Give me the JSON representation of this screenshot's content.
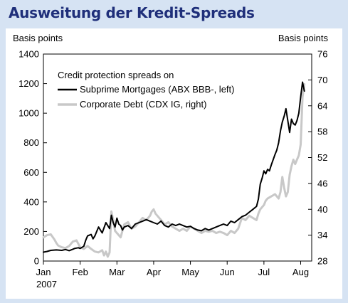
{
  "page": {
    "title": "Ausweitung der Kredit-Spreads",
    "background": "#d6e3f3",
    "title_color": "#1f2f7a"
  },
  "chart_data": {
    "type": "line",
    "ylabel_left": "Basis points",
    "ylabel_right": "Basis points",
    "ylim_left": [
      0,
      1400
    ],
    "ylim_right": [
      28,
      76
    ],
    "yticks_left": [
      0,
      200,
      400,
      600,
      800,
      1000,
      1200,
      1400
    ],
    "yticks_right": [
      28,
      34,
      40,
      46,
      52,
      58,
      64,
      70,
      76
    ],
    "xlim": [
      0,
      7.3
    ],
    "x_tick_positions": [
      0,
      1,
      2,
      3,
      4,
      5,
      6,
      7
    ],
    "x_tick_labels": [
      "Jan",
      "Feb",
      "Mar",
      "Apr",
      "May",
      "Jun",
      "Jul",
      "Aug"
    ],
    "x_year_label": "2007",
    "legend_title": "Credit protection spreads on",
    "legend_position": "top-left",
    "grid": false,
    "series": [
      {
        "name": "Subprime Mortgages (ABX BBB-, left)",
        "axis": "left",
        "color": "#000000",
        "x": [
          0,
          0.1,
          0.2,
          0.35,
          0.5,
          0.6,
          0.7,
          0.8,
          0.85,
          0.95,
          1.0,
          1.1,
          1.15,
          1.2,
          1.3,
          1.35,
          1.4,
          1.45,
          1.5,
          1.6,
          1.7,
          1.8,
          1.85,
          1.9,
          1.95,
          2.0,
          2.05,
          2.1,
          2.15,
          2.2,
          2.3,
          2.4,
          2.5,
          2.6,
          2.7,
          2.8,
          2.9,
          3.0,
          3.1,
          3.2,
          3.3,
          3.4,
          3.5,
          3.6,
          3.7,
          3.8,
          3.9,
          4.0,
          4.1,
          4.2,
          4.3,
          4.4,
          4.5,
          4.6,
          4.7,
          4.8,
          4.9,
          5.0,
          5.1,
          5.2,
          5.3,
          5.4,
          5.5,
          5.6,
          5.7,
          5.8,
          5.85,
          5.9,
          5.95,
          6.0,
          6.05,
          6.1,
          6.15,
          6.2,
          6.3,
          6.35,
          6.4,
          6.45,
          6.5,
          6.55,
          6.6,
          6.65,
          6.7,
          6.75,
          6.8,
          6.85,
          6.9,
          6.95,
          7.0,
          7.05,
          7.1
        ],
        "values": [
          60,
          65,
          72,
          75,
          72,
          78,
          70,
          80,
          85,
          90,
          85,
          100,
          140,
          170,
          180,
          150,
          170,
          200,
          230,
          190,
          260,
          220,
          310,
          260,
          230,
          290,
          250,
          240,
          210,
          230,
          240,
          220,
          250,
          260,
          270,
          280,
          270,
          260,
          250,
          270,
          240,
          230,
          250,
          240,
          250,
          240,
          230,
          235,
          220,
          210,
          205,
          220,
          210,
          220,
          230,
          240,
          250,
          240,
          270,
          260,
          280,
          300,
          310,
          330,
          350,
          370,
          420,
          520,
          560,
          610,
          590,
          620,
          610,
          650,
          720,
          750,
          800,
          880,
          940,
          980,
          1030,
          950,
          870,
          960,
          930,
          920,
          950,
          1000,
          1110,
          1210,
          1150
        ]
      },
      {
        "name": "Corporate Debt (CDX IG, right)",
        "axis": "right",
        "color": "#c8c8c8",
        "x": [
          0,
          0.1,
          0.2,
          0.3,
          0.35,
          0.4,
          0.5,
          0.6,
          0.7,
          0.8,
          0.9,
          1.0,
          1.1,
          1.2,
          1.3,
          1.4,
          1.5,
          1.6,
          1.65,
          1.7,
          1.75,
          1.8,
          1.85,
          1.9,
          1.95,
          2.0,
          2.05,
          2.1,
          2.2,
          2.3,
          2.4,
          2.5,
          2.6,
          2.7,
          2.8,
          2.9,
          2.95,
          3.0,
          3.05,
          3.1,
          3.2,
          3.3,
          3.4,
          3.5,
          3.6,
          3.7,
          3.8,
          3.9,
          4.0,
          4.1,
          4.2,
          4.3,
          4.4,
          4.5,
          4.6,
          4.7,
          4.8,
          4.9,
          5.0,
          5.1,
          5.2,
          5.3,
          5.4,
          5.5,
          5.6,
          5.7,
          5.8,
          5.85,
          5.9,
          5.95,
          6.0,
          6.05,
          6.1,
          6.2,
          6.3,
          6.4,
          6.45,
          6.5,
          6.55,
          6.6,
          6.65,
          6.7,
          6.75,
          6.8,
          6.85,
          6.9,
          6.95,
          7.0,
          7.05,
          7.1
        ],
        "values": [
          33.5,
          34.0,
          34.2,
          33.0,
          32.2,
          31.6,
          31.2,
          31.0,
          31.5,
          32.5,
          32.8,
          31.2,
          30.8,
          31.5,
          30.8,
          30.2,
          30.0,
          30.5,
          29.3,
          30.2,
          29.0,
          30.0,
          39.5,
          37.5,
          35.0,
          34.5,
          34.0,
          33.5,
          36.5,
          37.0,
          35.5,
          36.0,
          37.0,
          38.0,
          37.5,
          38.5,
          39.5,
          40.0,
          39.0,
          38.5,
          37.5,
          36.5,
          37.0,
          36.0,
          35.5,
          35.0,
          35.5,
          35.0,
          36.0,
          35.5,
          35.0,
          34.5,
          35.0,
          34.8,
          35.0,
          34.5,
          34.8,
          34.5,
          34.0,
          35.0,
          34.5,
          35.5,
          38.0,
          37.5,
          38.5,
          38.0,
          37.5,
          39.0,
          40.0,
          40.5,
          41.0,
          42.0,
          42.5,
          43.0,
          43.5,
          42.5,
          44.0,
          47.5,
          45.0,
          43.0,
          44.0,
          48.0,
          50.0,
          51.5,
          50.5,
          51.5,
          52.5,
          55.0,
          66.0,
          69.0
        ]
      }
    ]
  }
}
